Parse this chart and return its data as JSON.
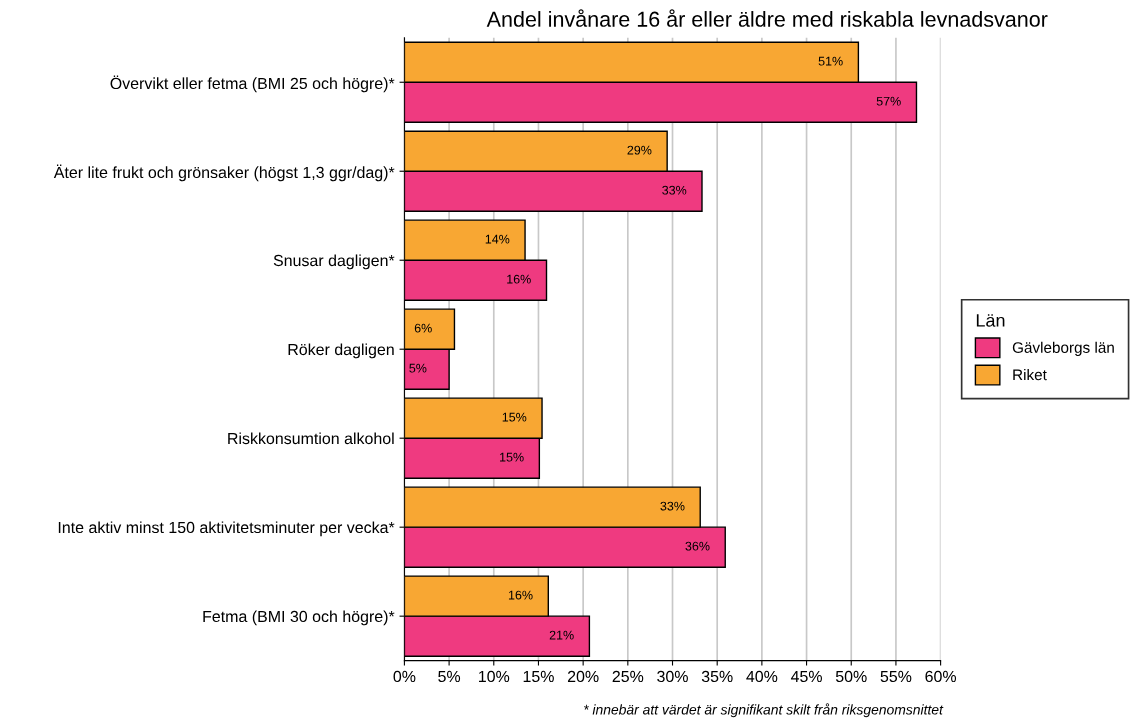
{
  "chart_data": {
    "type": "bar",
    "orientation": "horizontal",
    "title": "Andel invånare 16 år eller äldre med riskabla levnadsvanor",
    "categories": [
      "Övervikt eller fetma (BMI 25 och högre)*",
      "Äter lite frukt och grönsaker (högst 1,3 ggr/dag)*",
      "Snusar dagligen*",
      "Röker dagligen",
      "Riskkonsumtion alkohol",
      "Inte aktiv minst 150 aktivitetsminuter per vecka*",
      "Fetma (BMI 30 och högre)*"
    ],
    "series": [
      {
        "name": "Gävleborgs län",
        "color": "#ef3a80",
        "values": [
          57.3,
          33.3,
          15.9,
          5.0,
          15.1,
          35.9,
          20.7
        ],
        "value_labels": [
          "57%",
          "33%",
          "16%",
          "5%",
          "15%",
          "36%",
          "21%"
        ]
      },
      {
        "name": "Riket",
        "color": "#f8a733",
        "values": [
          50.8,
          29.4,
          13.5,
          5.6,
          15.4,
          33.1,
          16.1
        ],
        "value_labels": [
          "51%",
          "29%",
          "14%",
          "6%",
          "15%",
          "33%",
          "16%"
        ]
      }
    ],
    "xlim": [
      0,
      60
    ],
    "xticks": [
      {
        "value": 0,
        "label": "0%"
      },
      {
        "value": 5,
        "label": "5%"
      },
      {
        "value": 10,
        "label": "10%"
      },
      {
        "value": 15,
        "label": "15%"
      },
      {
        "value": 20,
        "label": "20%"
      },
      {
        "value": 25,
        "label": "25%"
      },
      {
        "value": 30,
        "label": "30%"
      },
      {
        "value": 35,
        "label": "35%"
      },
      {
        "value": 40,
        "label": "40%"
      },
      {
        "value": 45,
        "label": "45%"
      },
      {
        "value": 50,
        "label": "50%"
      },
      {
        "value": 55,
        "label": "55%"
      },
      {
        "value": 60,
        "label": "60%"
      }
    ],
    "grid": "x",
    "legend": "right",
    "legend_title": "Län",
    "annotations": [
      "* innebär att värdet är signifikant skilt från riksgenomsnittet"
    ]
  }
}
